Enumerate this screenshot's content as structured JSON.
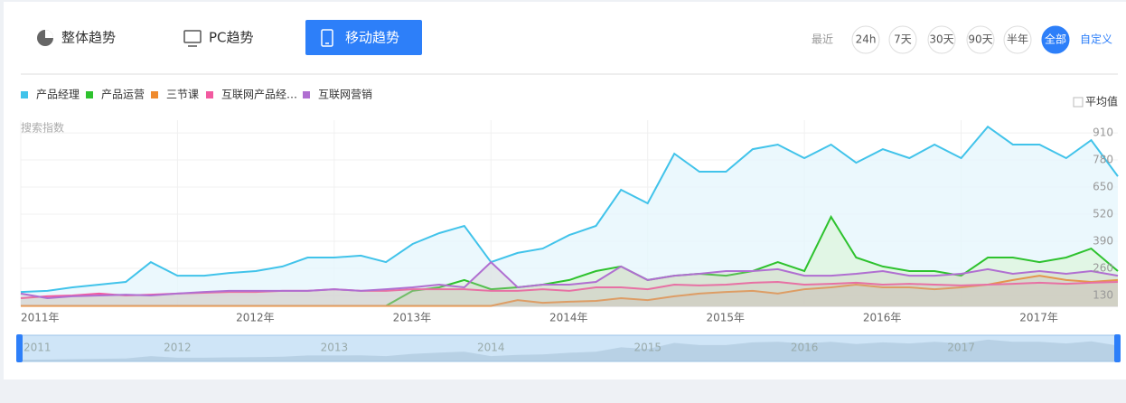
{
  "tabs": [
    "整体趋势",
    "PC趋势",
    "移动趋势"
  ],
  "active_tab": 2,
  "range_label": "最近",
  "ranges": [
    "24h",
    "7天",
    "30天",
    "90天",
    "半年",
    "全部"
  ],
  "active_range": 5,
  "custom": "自定义",
  "average": "平均值",
  "chart_data": {
    "type": "line",
    "y_label": "搜索指数",
    "x": [
      2011,
      2011.17,
      2011.33,
      2011.5,
      2011.67,
      2011.83,
      2012,
      2012.17,
      2012.33,
      2012.5,
      2012.67,
      2012.83,
      2013,
      2013.17,
      2013.33,
      2013.5,
      2013.67,
      2013.83,
      2014,
      2014.17,
      2014.33,
      2014.5,
      2014.67,
      2014.83,
      2015,
      2015.17,
      2015.33,
      2015.5,
      2015.67,
      2015.83,
      2016,
      2016.17,
      2016.33,
      2016.5,
      2016.67,
      2016.83,
      2017,
      2017.17,
      2017.33,
      2017.5,
      2017.67,
      2017.83,
      2018
    ],
    "series": [
      {
        "name": "产品经理",
        "color": "#41c3ea",
        "values": [
          147,
          152,
          169,
          182,
          195,
          290,
          225,
          225,
          238,
          247,
          269,
          312,
          312,
          321,
          290,
          377,
          429,
          464,
          290,
          334,
          355,
          420,
          464,
          637,
          572,
          810,
          724,
          724,
          832,
          854,
          789,
          854,
          767,
          832,
          789,
          854,
          789,
          940,
          854,
          854,
          789,
          875,
          702
        ]
      },
      {
        "name": "产品运营",
        "color": "#2ec22e",
        "values": [
          80,
          80,
          80,
          80,
          80,
          80,
          80,
          80,
          80,
          80,
          80,
          80,
          80,
          80,
          80,
          152,
          169,
          204,
          160,
          169,
          182,
          204,
          247,
          269,
          204,
          225,
          234,
          225,
          247,
          290,
          247,
          507,
          312,
          269,
          247,
          247,
          225,
          312,
          312,
          290,
          312,
          355,
          247
        ]
      },
      {
        "name": "三节课",
        "color": "#ef8a2d",
        "values": [
          80,
          80,
          80,
          80,
          80,
          80,
          80,
          80,
          80,
          80,
          80,
          80,
          80,
          80,
          80,
          80,
          80,
          80,
          80,
          108,
          95,
          100,
          104,
          117,
          108,
          126,
          139,
          147,
          152,
          139,
          160,
          169,
          182,
          169,
          169,
          160,
          169,
          182,
          204,
          225,
          204,
          195,
          204
        ]
      },
      {
        "name": "互联网产品经…",
        "color": "#f25aa0",
        "values": [
          117,
          126,
          130,
          139,
          130,
          134,
          139,
          143,
          147,
          147,
          152,
          152,
          160,
          152,
          152,
          160,
          160,
          160,
          152,
          152,
          160,
          152,
          169,
          169,
          160,
          182,
          178,
          182,
          191,
          195,
          182,
          186,
          191,
          182,
          186,
          182,
          178,
          182,
          186,
          191,
          186,
          191,
          195
        ]
      },
      {
        "name": "互联网营销",
        "color": "#b06fd1",
        "values": [
          139,
          117,
          126,
          130,
          134,
          130,
          139,
          147,
          152,
          152,
          152,
          152,
          160,
          152,
          160,
          169,
          182,
          169,
          290,
          169,
          182,
          182,
          195,
          269,
          204,
          225,
          234,
          247,
          247,
          256,
          225,
          225,
          234,
          247,
          225,
          225,
          234,
          256,
          234,
          247,
          234,
          247,
          225
        ]
      }
    ],
    "xlim": [
      2011,
      2018
    ],
    "xticks": [
      {
        "value": 2011,
        "label": "2011年"
      },
      {
        "value": 2012,
        "label": "2012年"
      },
      {
        "value": 2013,
        "label": "2013年"
      },
      {
        "value": 2014,
        "label": "2014年"
      },
      {
        "value": 2015,
        "label": "2015年"
      },
      {
        "value": 2016,
        "label": "2016年"
      },
      {
        "value": 2017,
        "label": "2017年"
      }
    ],
    "ylim": [
      78,
      971
    ],
    "yticks": [
      130,
      260,
      390,
      520,
      650,
      780,
      910
    ],
    "grid": true,
    "navigator_xticks": [
      2011,
      2012,
      2013,
      2014,
      2015,
      2016,
      2017
    ]
  }
}
